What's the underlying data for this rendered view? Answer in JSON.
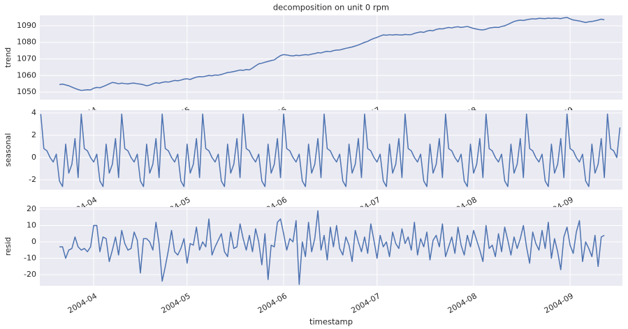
{
  "chart_data": {
    "type": "line",
    "title": "decomposition on unit 0 rpm",
    "xlabel": "timestamp",
    "grid": true,
    "xlim": [
      74.7,
      261.8
    ],
    "xticks": [
      {
        "value": 92,
        "label": "2004-04"
      },
      {
        "value": 122,
        "label": "2004-05"
      },
      {
        "value": 153,
        "label": "2004-06"
      },
      {
        "value": 183,
        "label": "2004-07"
      },
      {
        "value": 214,
        "label": "2004-08"
      },
      {
        "value": 245,
        "label": "2004-09"
      }
    ],
    "x": [
      75,
      76,
      77,
      78,
      79,
      80,
      81,
      82,
      83,
      84,
      85,
      86,
      87,
      88,
      89,
      90,
      91,
      92,
      93,
      94,
      95,
      96,
      97,
      98,
      99,
      100,
      101,
      102,
      103,
      104,
      105,
      106,
      107,
      108,
      109,
      110,
      111,
      112,
      113,
      114,
      115,
      116,
      117,
      118,
      119,
      120,
      121,
      122,
      123,
      124,
      125,
      126,
      127,
      128,
      129,
      130,
      131,
      132,
      133,
      134,
      135,
      136,
      137,
      138,
      139,
      140,
      141,
      142,
      143,
      144,
      145,
      146,
      147,
      148,
      149,
      150,
      151,
      152,
      153,
      154,
      155,
      156,
      157,
      158,
      159,
      160,
      161,
      162,
      163,
      164,
      165,
      166,
      167,
      168,
      169,
      170,
      171,
      172,
      173,
      174,
      175,
      176,
      177,
      178,
      179,
      180,
      181,
      182,
      183,
      184,
      185,
      186,
      187,
      188,
      189,
      190,
      191,
      192,
      193,
      194,
      195,
      196,
      197,
      198,
      199,
      200,
      201,
      202,
      203,
      204,
      205,
      206,
      207,
      208,
      209,
      210,
      211,
      212,
      213,
      214,
      215,
      216,
      217,
      218,
      219,
      220,
      221,
      222,
      223,
      224,
      225,
      226,
      227,
      228,
      229,
      230,
      231,
      232,
      233,
      234,
      235,
      236,
      237,
      238,
      239,
      240,
      241,
      242,
      243,
      244,
      245,
      246,
      247,
      248,
      249,
      250,
      251,
      252,
      253,
      254,
      255,
      256,
      257,
      258,
      259,
      260,
      261
    ],
    "series": [
      {
        "name": "trend",
        "color": "#4c72b0",
        "ylim": [
          1045.4,
          1096.3
        ],
        "yticks": [
          1050,
          1060,
          1070,
          1080,
          1090
        ],
        "values": [
          null,
          null,
          null,
          null,
          null,
          null,
          1054.5,
          1054.8,
          1054.3,
          1053.8,
          1053.0,
          1052.2,
          1051.5,
          1051.0,
          1051.2,
          1051.4,
          1051.3,
          1052.3,
          1052.8,
          1052.6,
          1053.3,
          1054.1,
          1055.0,
          1055.8,
          1055.5,
          1055.0,
          1055.4,
          1055.1,
          1054.9,
          1055.3,
          1055.4,
          1055.0,
          1054.8,
          1054.4,
          1053.8,
          1054.2,
          1055.0,
          1055.6,
          1055.3,
          1055.8,
          1056.2,
          1056.0,
          1056.5,
          1057.0,
          1056.8,
          1057.2,
          1057.8,
          1058.0,
          1057.6,
          1058.4,
          1059.0,
          1059.3,
          1059.2,
          1059.6,
          1060.0,
          1059.8,
          1060.3,
          1060.2,
          1060.6,
          1061.2,
          1061.8,
          1062.0,
          1062.4,
          1062.8,
          1063.3,
          1063.1,
          1063.6,
          1063.4,
          1064.5,
          1065.8,
          1067.0,
          1067.4,
          1068.0,
          1068.5,
          1069.0,
          1069.4,
          1070.8,
          1072.0,
          1072.6,
          1072.4,
          1072.0,
          1071.8,
          1072.2,
          1072.0,
          1072.3,
          1072.6,
          1072.4,
          1072.9,
          1073.2,
          1073.8,
          1073.6,
          1074.2,
          1074.6,
          1074.4,
          1075.0,
          1075.3,
          1075.4,
          1075.9,
          1076.4,
          1076.8,
          1077.2,
          1077.8,
          1078.4,
          1079.2,
          1080.0,
          1080.6,
          1081.6,
          1082.4,
          1083.0,
          1083.8,
          1084.5,
          1084.3,
          1084.6,
          1084.4,
          1084.7,
          1084.5,
          1084.4,
          1084.8,
          1084.6,
          1084.7,
          1085.4,
          1085.9,
          1086.3,
          1086.0,
          1086.8,
          1087.2,
          1087.0,
          1087.8,
          1088.2,
          1088.1,
          1088.6,
          1089.0,
          1088.7,
          1089.2,
          1089.4,
          1089.0,
          1089.3,
          1089.6,
          1089.0,
          1088.4,
          1088.0,
          1087.6,
          1087.5,
          1087.9,
          1088.6,
          1088.9,
          1089.1,
          1089.0,
          1089.6,
          1090.0,
          1090.8,
          1091.7,
          1092.6,
          1093.1,
          1093.4,
          1093.2,
          1093.6,
          1094.0,
          1094.2,
          1094.1,
          1094.5,
          1094.4,
          1094.3,
          1094.6,
          1094.4,
          1094.6,
          1094.5,
          1094.3,
          1094.8,
          1095.0,
          1094.2,
          1093.5,
          1093.2,
          1092.9,
          1092.4,
          1092.0,
          1092.4,
          1092.6,
          1093.0,
          1093.4,
          1094.0,
          1093.6,
          null,
          null,
          null,
          null,
          null
        ]
      },
      {
        "name": "seasonal",
        "color": "#4c72b0",
        "ylim": [
          -2.875,
          4.25
        ],
        "yticks": [
          -2,
          0,
          2,
          4
        ],
        "values": [
          3.9,
          0.8,
          0.6,
          0.0,
          -0.4,
          0.3,
          -2.1,
          -2.6,
          1.2,
          -1.4,
          -0.6,
          1.7,
          -1.8,
          3.9,
          0.8,
          0.6,
          0.0,
          -0.4,
          0.3,
          -2.1,
          -2.6,
          1.2,
          -1.4,
          -0.6,
          1.7,
          -1.8,
          3.9,
          0.8,
          0.6,
          0.0,
          -0.4,
          0.3,
          -2.1,
          -2.6,
          1.2,
          -1.4,
          -0.6,
          1.7,
          -1.8,
          3.9,
          0.8,
          0.6,
          0.0,
          -0.4,
          0.3,
          -2.1,
          -2.6,
          1.2,
          -1.4,
          -0.6,
          1.7,
          -1.8,
          3.9,
          0.8,
          0.6,
          0.0,
          -0.4,
          0.3,
          -2.1,
          -2.6,
          1.2,
          -1.4,
          -0.6,
          1.7,
          -1.8,
          3.9,
          0.8,
          0.6,
          0.0,
          -0.4,
          0.3,
          -2.1,
          -2.6,
          1.2,
          -1.4,
          -0.6,
          1.7,
          -1.8,
          3.9,
          0.8,
          0.6,
          0.0,
          -0.4,
          0.3,
          -2.1,
          -2.6,
          1.2,
          -1.4,
          -0.6,
          1.7,
          -1.8,
          3.9,
          0.8,
          0.6,
          0.0,
          -0.4,
          0.3,
          -2.1,
          -2.6,
          1.2,
          -1.4,
          -0.6,
          1.7,
          -1.8,
          3.9,
          0.8,
          0.6,
          0.0,
          -0.4,
          0.3,
          -2.1,
          -2.6,
          1.2,
          -1.4,
          -0.6,
          1.7,
          -1.8,
          3.9,
          0.8,
          0.6,
          0.0,
          -0.4,
          0.3,
          -2.1,
          -2.6,
          1.2,
          -1.4,
          -0.6,
          1.7,
          -1.8,
          3.9,
          0.8,
          0.6,
          0.0,
          -0.4,
          0.3,
          -2.1,
          -2.6,
          1.2,
          -1.4,
          -0.6,
          1.7,
          -1.8,
          3.9,
          0.8,
          0.6,
          0.0,
          -0.4,
          0.3,
          -2.1,
          -2.6,
          1.2,
          -1.4,
          -0.6,
          1.7,
          -1.8,
          3.9,
          0.8,
          0.6,
          0.0,
          -0.4,
          0.3,
          -2.1,
          -2.6,
          1.2,
          -1.4,
          -0.6,
          1.7,
          -1.8,
          3.9,
          0.8,
          0.6,
          0.0,
          -0.4,
          0.3,
          -2.1,
          -2.6,
          1.2,
          -1.4,
          -0.6,
          1.7,
          -1.8,
          3.9,
          0.8,
          0.6,
          0.0,
          2.7
        ]
      },
      {
        "name": "resid",
        "color": "#4c72b0",
        "ylim": [
          -26.8,
          21.3
        ],
        "yticks": [
          -20,
          -10,
          0,
          10,
          20
        ],
        "values": [
          null,
          null,
          null,
          null,
          null,
          null,
          -3,
          -3,
          -10,
          -5,
          -4,
          3,
          -3,
          -5,
          -4,
          -6,
          -3,
          10,
          10,
          -6,
          3,
          2,
          -12,
          -5,
          3,
          -8,
          7,
          -1,
          -5,
          -4,
          6,
          1,
          -19,
          2,
          2,
          0,
          -5,
          12,
          -1,
          -24,
          -15,
          -5,
          7,
          -6,
          -8,
          -4,
          2,
          -13,
          -1,
          -2,
          9,
          -5,
          0,
          -3,
          14,
          -8,
          -3,
          1,
          5,
          -6,
          -9,
          6,
          -4,
          -3,
          11,
          2,
          -5,
          4,
          -6,
          8,
          0,
          -14,
          5,
          -23,
          -2,
          -3,
          12,
          14,
          5,
          -5,
          2,
          0,
          13,
          -26,
          0,
          -9,
          12,
          -6,
          2,
          19,
          -5,
          4,
          -11,
          9,
          -3,
          10,
          -4,
          -8,
          3,
          -2,
          -12,
          7,
          0,
          -6,
          3,
          -7,
          11,
          1,
          -10,
          4,
          -3,
          0,
          -9,
          6,
          -1,
          -4,
          8,
          -1,
          3,
          -5,
          12,
          -8,
          2,
          -3,
          6,
          -11,
          1,
          4,
          -3,
          11,
          -9,
          -3,
          3,
          -7,
          9,
          -2,
          -8,
          4,
          -3,
          7,
          1,
          -5,
          -12,
          10,
          -4,
          -2,
          -9,
          5,
          -6,
          9,
          1,
          -8,
          3,
          -4,
          2,
          10,
          -3,
          -13,
          6,
          -1,
          -5,
          7,
          -4,
          12,
          -10,
          2,
          -6,
          -17,
          3,
          9,
          -2,
          -7,
          6,
          13,
          -12,
          0,
          -4,
          -9,
          4,
          -15,
          3,
          4,
          null,
          null,
          null,
          null,
          null
        ]
      }
    ]
  }
}
